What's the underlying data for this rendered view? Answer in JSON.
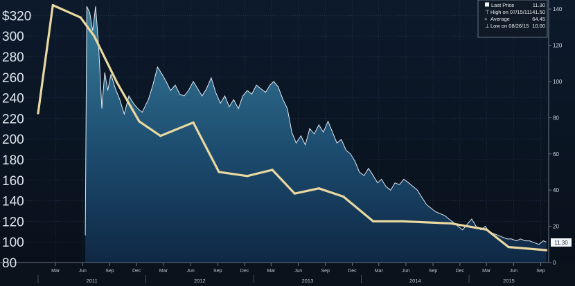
{
  "chart_data": {
    "type": "line",
    "x_axis": {
      "months": [
        "Mar",
        "Jun",
        "Sep",
        "Dec",
        "Mar",
        "Jun",
        "Sep",
        "Dec",
        "Mar",
        "Jun",
        "Sep",
        "Dec",
        "Mar",
        "Jun",
        "Sep",
        "Dec",
        "Mar",
        "Jun",
        "Sep"
      ],
      "years": [
        "2011",
        "2012",
        "2013",
        "2014",
        "2015"
      ],
      "range": [
        "2011-01",
        "2015-09"
      ]
    },
    "left_axis": {
      "ticks": [
        "$320",
        "300",
        "280",
        "260",
        "240",
        "220",
        "200",
        "180",
        "160",
        "140",
        "120",
        "100",
        "80"
      ],
      "range": [
        80,
        335
      ]
    },
    "right_axis": {
      "ticks": [
        "140",
        "120",
        "100",
        "80",
        "60",
        "40",
        "20",
        "0"
      ],
      "range": [
        0,
        145
      ]
    },
    "series": [
      {
        "axis": "right",
        "color": "#dfe8f2",
        "fill": "#2a6a88",
        "points": [
          [
            "2011-06-10",
            15
          ],
          [
            "2011-06-15",
            141.5
          ],
          [
            "2011-06-25",
            138
          ],
          [
            "2011-07-05",
            128
          ],
          [
            "2011-07-15",
            141.5
          ],
          [
            "2011-07-25",
            120
          ],
          [
            "2011-08-05",
            85
          ],
          [
            "2011-08-15",
            105
          ],
          [
            "2011-08-25",
            95
          ],
          [
            "2011-09-05",
            104
          ],
          [
            "2011-09-20",
            96
          ],
          [
            "2011-10-05",
            90
          ],
          [
            "2011-10-20",
            82
          ],
          [
            "2011-11-05",
            92
          ],
          [
            "2011-11-20",
            88
          ],
          [
            "2011-12-05",
            85
          ],
          [
            "2011-12-20",
            83
          ],
          [
            "2012-01-10",
            90
          ],
          [
            "2012-01-25",
            98
          ],
          [
            "2012-02-10",
            108
          ],
          [
            "2012-02-25",
            104
          ],
          [
            "2012-03-10",
            100
          ],
          [
            "2012-03-25",
            95
          ],
          [
            "2012-04-10",
            98
          ],
          [
            "2012-04-25",
            93
          ],
          [
            "2012-05-10",
            92
          ],
          [
            "2012-05-25",
            95
          ],
          [
            "2012-06-10",
            100
          ],
          [
            "2012-06-25",
            96
          ],
          [
            "2012-07-10",
            92
          ],
          [
            "2012-07-25",
            96
          ],
          [
            "2012-08-10",
            102
          ],
          [
            "2012-08-25",
            94
          ],
          [
            "2012-09-10",
            88
          ],
          [
            "2012-09-25",
            92
          ],
          [
            "2012-10-10",
            86
          ],
          [
            "2012-10-25",
            90
          ],
          [
            "2012-11-10",
            85
          ],
          [
            "2012-11-25",
            92
          ],
          [
            "2012-12-10",
            95
          ],
          [
            "2012-12-25",
            93
          ],
          [
            "2013-01-10",
            98
          ],
          [
            "2013-01-25",
            96
          ],
          [
            "2013-02-10",
            94
          ],
          [
            "2013-02-25",
            98
          ],
          [
            "2013-03-10",
            100
          ],
          [
            "2013-03-25",
            97
          ],
          [
            "2013-04-10",
            90
          ],
          [
            "2013-04-25",
            85
          ],
          [
            "2013-05-10",
            72
          ],
          [
            "2013-05-25",
            66
          ],
          [
            "2013-06-10",
            70
          ],
          [
            "2013-06-25",
            65
          ],
          [
            "2013-07-10",
            74
          ],
          [
            "2013-07-25",
            71
          ],
          [
            "2013-08-10",
            76
          ],
          [
            "2013-08-25",
            72
          ],
          [
            "2013-09-10",
            78
          ],
          [
            "2013-09-25",
            72
          ],
          [
            "2013-10-10",
            66
          ],
          [
            "2013-10-25",
            68
          ],
          [
            "2013-11-10",
            62
          ],
          [
            "2013-11-25",
            60
          ],
          [
            "2013-12-10",
            56
          ],
          [
            "2013-12-25",
            50
          ],
          [
            "2014-01-10",
            48
          ],
          [
            "2014-01-25",
            52
          ],
          [
            "2014-02-10",
            48
          ],
          [
            "2014-02-25",
            44
          ],
          [
            "2014-03-10",
            46
          ],
          [
            "2014-03-25",
            42
          ],
          [
            "2014-04-10",
            40
          ],
          [
            "2014-04-25",
            44
          ],
          [
            "2014-05-10",
            43
          ],
          [
            "2014-05-25",
            46
          ],
          [
            "2014-06-10",
            44
          ],
          [
            "2014-06-25",
            42
          ],
          [
            "2014-07-10",
            40
          ],
          [
            "2014-07-25",
            36
          ],
          [
            "2014-08-10",
            32
          ],
          [
            "2014-08-25",
            30
          ],
          [
            "2014-09-10",
            28
          ],
          [
            "2014-09-25",
            27
          ],
          [
            "2014-10-10",
            26
          ],
          [
            "2014-10-25",
            24
          ],
          [
            "2014-11-10",
            22
          ],
          [
            "2014-11-25",
            20
          ],
          [
            "2014-12-10",
            18
          ],
          [
            "2014-12-25",
            21
          ],
          [
            "2015-01-10",
            24
          ],
          [
            "2015-01-25",
            20
          ],
          [
            "2015-02-10",
            18
          ],
          [
            "2015-02-25",
            20
          ],
          [
            "2015-03-10",
            17
          ],
          [
            "2015-03-25",
            16
          ],
          [
            "2015-04-10",
            15
          ],
          [
            "2015-04-25",
            14
          ],
          [
            "2015-05-10",
            13
          ],
          [
            "2015-05-25",
            13
          ],
          [
            "2015-06-10",
            12
          ],
          [
            "2015-06-25",
            13
          ],
          [
            "2015-07-10",
            12
          ],
          [
            "2015-07-25",
            12
          ],
          [
            "2015-08-10",
            11
          ],
          [
            "2015-08-26",
            10
          ],
          [
            "2015-09-10",
            12
          ],
          [
            "2015-09-20",
            11.3
          ]
        ]
      },
      {
        "axis": "left",
        "color": "#e9d9a0",
        "points": [
          [
            "2011-01-01",
            225
          ],
          [
            "2011-02-20",
            330
          ],
          [
            "2011-05-25",
            318
          ],
          [
            "2011-07-10",
            300
          ],
          [
            "2011-09-25",
            255
          ],
          [
            "2011-12-10",
            217
          ],
          [
            "2012-02-20",
            203
          ],
          [
            "2012-06-10",
            216
          ],
          [
            "2012-09-05",
            168
          ],
          [
            "2012-12-10",
            164
          ],
          [
            "2013-03-05",
            170
          ],
          [
            "2013-05-20",
            147
          ],
          [
            "2013-08-10",
            152
          ],
          [
            "2013-11-01",
            144
          ],
          [
            "2014-02-10",
            120
          ],
          [
            "2014-05-20",
            120
          ],
          [
            "2014-11-01",
            118
          ],
          [
            "2015-03-01",
            112
          ],
          [
            "2015-05-15",
            95
          ],
          [
            "2015-09-20",
            92
          ]
        ]
      }
    ],
    "legend": {
      "position": "top-right",
      "entries": [
        {
          "label": "Last Price",
          "value": "11.30"
        },
        {
          "label": "High on 07/15/11",
          "value": "141.50"
        },
        {
          "label": "Average",
          "value": "64.45"
        },
        {
          "label": "Low on 08/26/15",
          "value": "10.00"
        }
      ]
    },
    "last_value_tag": "11.30",
    "grid": true
  }
}
